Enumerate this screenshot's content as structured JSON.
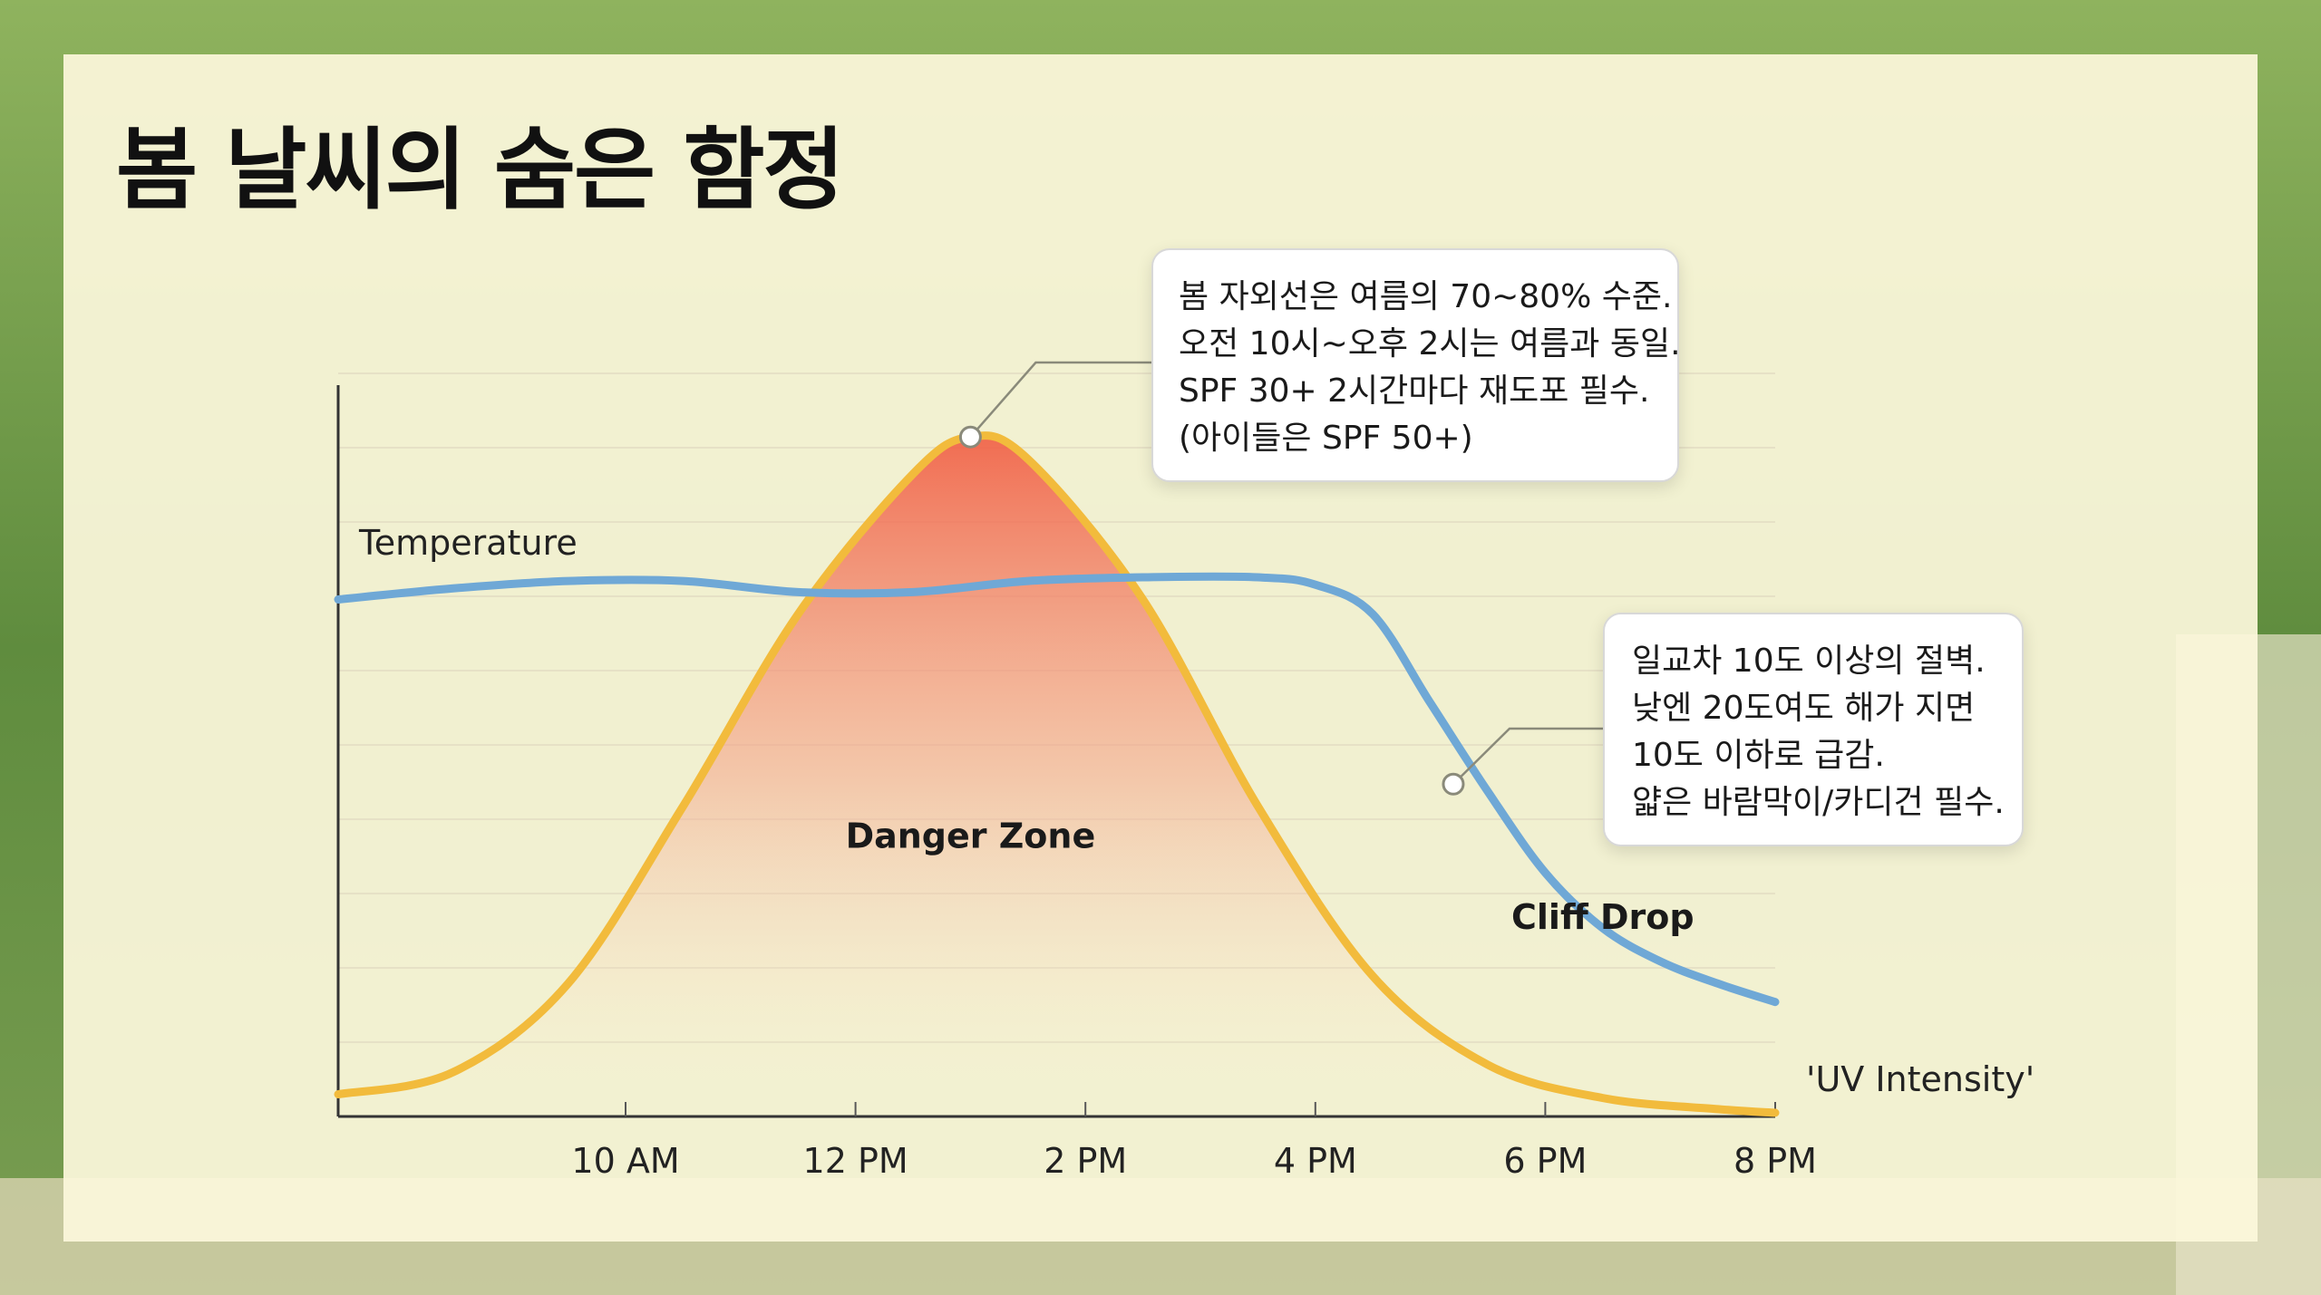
{
  "title": "봄 날씨의 숨은 함정",
  "colors": {
    "card_bg": "#fcf8dc",
    "uv_line": "#f2bb3c",
    "uv_fill_top": "#f04a30",
    "temp_line": "#6fa8d6",
    "grid": "#e6e1c6",
    "axis": "#333333"
  },
  "callouts": {
    "uv": {
      "lines": [
        "봄 자외선은 여름의 70~80% 수준.",
        "오전 10시~오후 2시는 여름과 동일.",
        "SPF 30+ 2시간마다 재도포 필수.",
        "(아이들은 SPF 50+)"
      ]
    },
    "temperature": {
      "lines": [
        "일교차 10도 이상의 절벽.",
        "낮엔 20도여도 해가 지면",
        "10도 이하로 급감.",
        "얇은 바람막이/카디건 필수."
      ]
    }
  },
  "chart_data": {
    "type": "line",
    "x_ticks": [
      "10 AM",
      "12 PM",
      "2 PM",
      "4 PM",
      "6 PM",
      "8 PM"
    ],
    "x_unit": "hour",
    "xlim": [
      7.5,
      20
    ],
    "ylim": [
      0,
      100
    ],
    "grid": true,
    "series": [
      {
        "name": "Temperature",
        "color": "#6fa8d6",
        "points": [
          [
            7.5,
            70
          ],
          [
            8.5,
            71.5
          ],
          [
            9.5,
            72.5
          ],
          [
            10.5,
            72.5
          ],
          [
            11.5,
            71
          ],
          [
            12.5,
            71
          ],
          [
            13.5,
            72.5
          ],
          [
            14.5,
            73
          ],
          [
            15.5,
            73
          ],
          [
            16,
            72
          ],
          [
            16.5,
            68
          ],
          [
            17,
            56
          ],
          [
            17.5,
            44
          ],
          [
            18,
            33
          ],
          [
            18.5,
            25.5
          ],
          [
            19,
            21
          ],
          [
            19.5,
            18
          ],
          [
            20,
            15.5
          ]
        ]
      },
      {
        "name": "'UV Intensity'",
        "color": "#f2bb3c",
        "points": [
          [
            7.5,
            3
          ],
          [
            8.5,
            6
          ],
          [
            9.5,
            18
          ],
          [
            10.5,
            42
          ],
          [
            11.5,
            68
          ],
          [
            12.5,
            87
          ],
          [
            13,
            92
          ],
          [
            13.5,
            89
          ],
          [
            14.5,
            70
          ],
          [
            15.5,
            42
          ],
          [
            16.5,
            19
          ],
          [
            17.5,
            7
          ],
          [
            18.5,
            2.5
          ],
          [
            19.5,
            1
          ],
          [
            20,
            0.5
          ]
        ]
      }
    ],
    "annotations": [
      {
        "text": "Danger Zone",
        "x": 13,
        "y": 38
      },
      {
        "text": "Cliff Drop",
        "x": 18.5,
        "y": 27
      }
    ],
    "callout_anchors": [
      {
        "callout": "uv",
        "x": 13,
        "y": 92
      },
      {
        "callout": "temperature",
        "x": 17.2,
        "y": 45
      }
    ]
  }
}
